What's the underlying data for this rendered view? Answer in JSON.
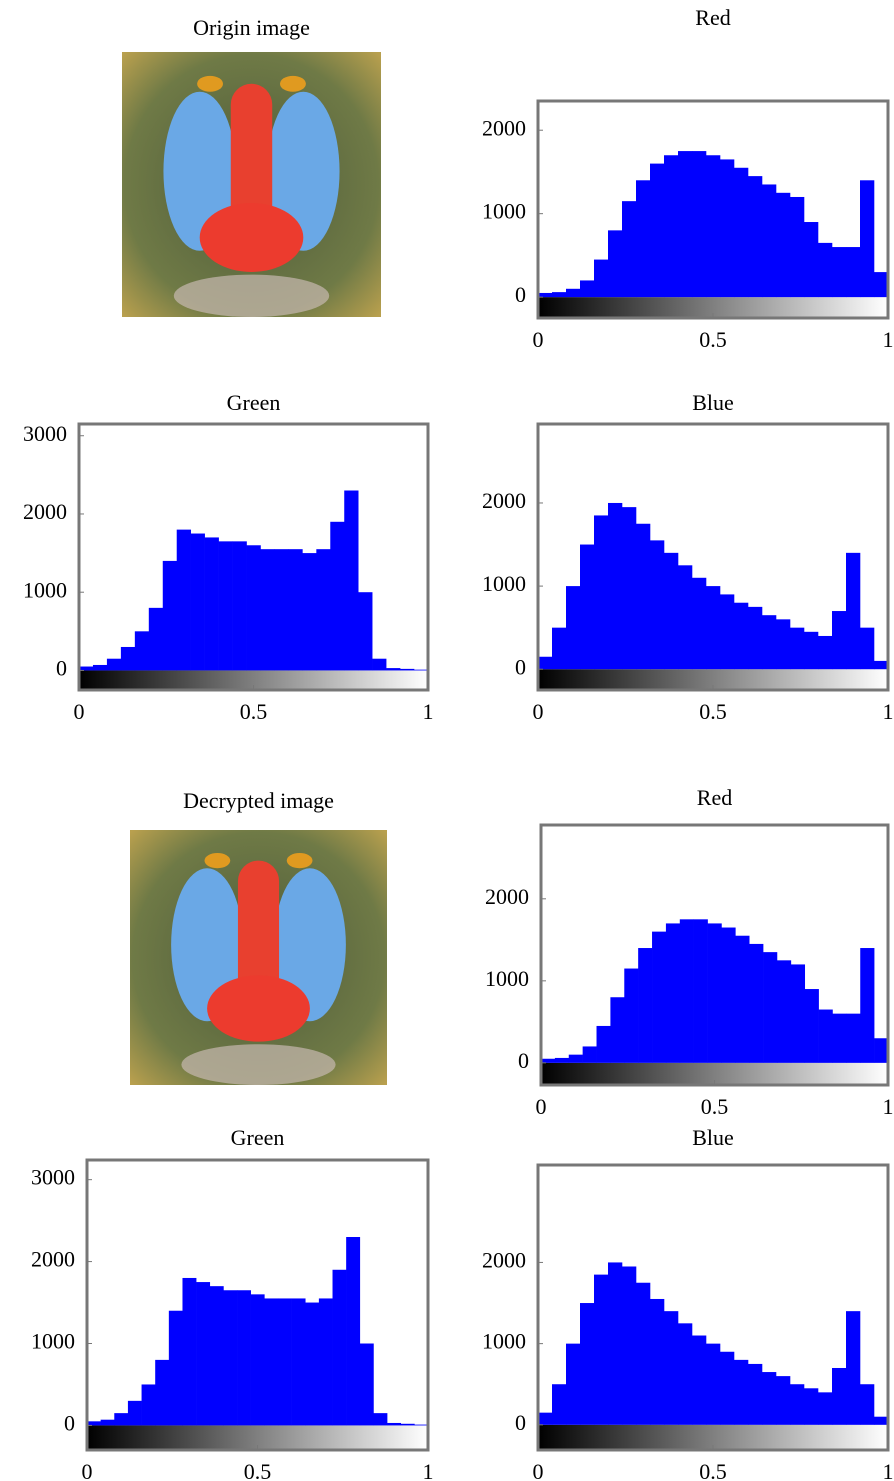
{
  "chart_data": [
    {
      "type": "image",
      "title": "Origin image"
    },
    {
      "type": "histogram",
      "title": "Red",
      "bins": [
        0,
        0.04,
        0.08,
        0.12,
        0.16,
        0.2,
        0.24,
        0.28,
        0.32,
        0.36,
        0.4,
        0.44,
        0.48,
        0.52,
        0.56,
        0.6,
        0.64,
        0.68,
        0.72,
        0.76,
        0.8,
        0.84,
        0.88,
        0.92,
        0.96,
        1
      ],
      "values": [
        50,
        60,
        100,
        200,
        450,
        800,
        1150,
        1400,
        1600,
        1700,
        1750,
        1750,
        1700,
        1650,
        1550,
        1450,
        1350,
        1250,
        1200,
        900,
        650,
        600,
        600,
        1400,
        300
      ],
      "color": "#0000ff",
      "xlim": [
        0,
        1
      ],
      "xticks": [
        0,
        0.5,
        1
      ],
      "ylim": [
        -250,
        2350
      ],
      "yticks": [
        0,
        1000,
        2000
      ]
    },
    {
      "type": "histogram",
      "title": "Green",
      "bins": [
        0,
        0.04,
        0.08,
        0.12,
        0.16,
        0.2,
        0.24,
        0.28,
        0.32,
        0.36,
        0.4,
        0.44,
        0.48,
        0.52,
        0.56,
        0.6,
        0.64,
        0.68,
        0.72,
        0.76,
        0.8,
        0.84,
        0.88,
        0.92,
        0.96,
        1
      ],
      "values": [
        50,
        70,
        150,
        300,
        500,
        800,
        1400,
        1800,
        1750,
        1700,
        1650,
        1650,
        1600,
        1550,
        1550,
        1550,
        1500,
        1550,
        1900,
        2300,
        1000,
        150,
        30,
        20,
        10
      ],
      "color": "#0000ff",
      "xlim": [
        0,
        1
      ],
      "xticks": [
        0,
        0.5,
        1
      ],
      "ylim": [
        -250,
        3150
      ],
      "yticks": [
        0,
        1000,
        2000,
        3000
      ]
    },
    {
      "type": "histogram",
      "title": "Blue",
      "bins": [
        0,
        0.04,
        0.08,
        0.12,
        0.16,
        0.2,
        0.24,
        0.28,
        0.32,
        0.36,
        0.4,
        0.44,
        0.48,
        0.52,
        0.56,
        0.6,
        0.64,
        0.68,
        0.72,
        0.76,
        0.8,
        0.84,
        0.88,
        0.92,
        0.96,
        1
      ],
      "values": [
        150,
        500,
        1000,
        1500,
        1850,
        2000,
        1950,
        1750,
        1550,
        1400,
        1250,
        1100,
        1000,
        900,
        800,
        750,
        650,
        600,
        500,
        450,
        400,
        700,
        1400,
        500,
        100
      ],
      "color": "#0000ff",
      "xlim": [
        0,
        1
      ],
      "xticks": [
        0,
        0.5,
        1
      ],
      "ylim": [
        -250,
        2950
      ],
      "yticks": [
        0,
        1000,
        2000
      ]
    },
    {
      "type": "image",
      "title": "Decrypted image"
    },
    {
      "type": "histogram",
      "title": "Red",
      "bins": [
        0,
        0.04,
        0.08,
        0.12,
        0.16,
        0.2,
        0.24,
        0.28,
        0.32,
        0.36,
        0.4,
        0.44,
        0.48,
        0.52,
        0.56,
        0.6,
        0.64,
        0.68,
        0.72,
        0.76,
        0.8,
        0.84,
        0.88,
        0.92,
        0.96,
        1
      ],
      "values": [
        50,
        60,
        100,
        200,
        450,
        800,
        1150,
        1400,
        1600,
        1700,
        1750,
        1750,
        1700,
        1650,
        1550,
        1450,
        1350,
        1250,
        1200,
        900,
        650,
        600,
        600,
        1400,
        300
      ],
      "color": "#0000ff",
      "xlim": [
        0,
        1
      ],
      "xticks": [
        0,
        0.5,
        1
      ],
      "ylim": [
        -270,
        2900
      ],
      "yticks": [
        0,
        1000,
        2000
      ]
    },
    {
      "type": "histogram",
      "title": "Green",
      "bins": [
        0,
        0.04,
        0.08,
        0.12,
        0.16,
        0.2,
        0.24,
        0.28,
        0.32,
        0.36,
        0.4,
        0.44,
        0.48,
        0.52,
        0.56,
        0.6,
        0.64,
        0.68,
        0.72,
        0.76,
        0.8,
        0.84,
        0.88,
        0.92,
        0.96,
        1
      ],
      "values": [
        50,
        70,
        150,
        300,
        500,
        800,
        1400,
        1800,
        1750,
        1700,
        1650,
        1650,
        1600,
        1550,
        1550,
        1550,
        1500,
        1550,
        1900,
        2300,
        1000,
        150,
        30,
        20,
        10
      ],
      "color": "#0000ff",
      "xlim": [
        0,
        1
      ],
      "xticks": [
        0,
        0.5,
        1
      ],
      "ylim": [
        -300,
        3240
      ],
      "yticks": [
        0,
        1000,
        2000,
        3000
      ]
    },
    {
      "type": "histogram",
      "title": "Blue",
      "bins": [
        0,
        0.04,
        0.08,
        0.12,
        0.16,
        0.2,
        0.24,
        0.28,
        0.32,
        0.36,
        0.4,
        0.44,
        0.48,
        0.52,
        0.56,
        0.6,
        0.64,
        0.68,
        0.72,
        0.76,
        0.8,
        0.84,
        0.88,
        0.92,
        0.96,
        1
      ],
      "values": [
        150,
        500,
        1000,
        1500,
        1850,
        2000,
        1950,
        1750,
        1550,
        1400,
        1250,
        1100,
        1000,
        900,
        800,
        750,
        650,
        600,
        500,
        450,
        400,
        700,
        1400,
        500,
        100
      ],
      "color": "#0000ff",
      "xlim": [
        0,
        1
      ],
      "xticks": [
        0,
        0.5,
        1
      ],
      "ylim": [
        -310,
        3200
      ],
      "yticks": [
        0,
        1000,
        2000
      ]
    }
  ]
}
